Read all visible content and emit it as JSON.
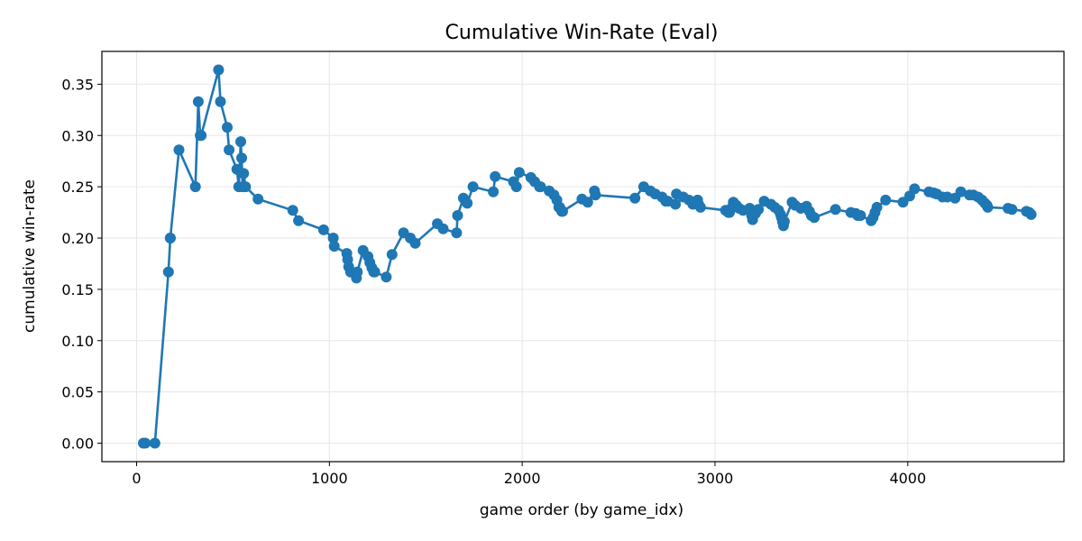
{
  "chart_data": {
    "type": "line",
    "title": "Cumulative Win-Rate (Eval)",
    "xlabel": "game order (by game_idx)",
    "ylabel": "cumulative win-rate",
    "xlim": [
      -180,
      4810
    ],
    "ylim": [
      -0.018,
      0.382
    ],
    "xticks": [
      0,
      1000,
      2000,
      3000,
      4000
    ],
    "xtick_labels": [
      "0",
      "1000",
      "2000",
      "3000",
      "4000"
    ],
    "yticks": [
      0.0,
      0.05,
      0.1,
      0.15,
      0.2,
      0.25,
      0.3,
      0.35
    ],
    "ytick_labels": [
      "0.00",
      "0.05",
      "0.10",
      "0.15",
      "0.20",
      "0.25",
      "0.30",
      "0.35"
    ],
    "grid": true,
    "color": "#1f77b4",
    "markers": true,
    "series": [
      {
        "x": [
          35,
          45,
          95,
          165,
          175,
          175,
          220,
          305,
          320,
          330,
          335,
          425,
          435,
          470,
          480,
          520,
          530,
          540,
          545,
          550,
          555,
          565,
          630,
          810,
          840,
          970,
          1020,
          1025,
          1090,
          1095,
          1100,
          1110,
          1140,
          1145,
          1175,
          1200,
          1210,
          1220,
          1230,
          1235,
          1295,
          1325,
          1385,
          1420,
          1445,
          1560,
          1590,
          1660,
          1665,
          1695,
          1715,
          1745,
          1850,
          1860,
          1955,
          1970,
          1985,
          2045,
          2065,
          2090,
          2095,
          2140,
          2165,
          2180,
          2190,
          2195,
          2205,
          2210,
          2310,
          2340,
          2375,
          2380,
          2585,
          2630,
          2665,
          2690,
          2725,
          2745,
          2755,
          2795,
          2800,
          2835,
          2865,
          2885,
          2910,
          2915,
          2925,
          3055,
          3070,
          3075,
          3085,
          3095,
          3110,
          3125,
          3145,
          3180,
          3190,
          3195,
          3210,
          3225,
          3255,
          3290,
          3310,
          3330,
          3340,
          3345,
          3350,
          3355,
          3360,
          3400,
          3415,
          3445,
          3475,
          3490,
          3500,
          3515,
          3625,
          3705,
          3730,
          3740,
          3755,
          3810,
          3820,
          3830,
          3840,
          3885,
          3975,
          4010,
          4035,
          4110,
          4135,
          4150,
          4180,
          4205,
          4245,
          4275,
          4320,
          4340,
          4365,
          4385,
          4400,
          4410,
          4415,
          4520,
          4540,
          4615,
          4630,
          4640
        ],
        "y": [
          0.0,
          0.0,
          0.0,
          0.167,
          0.2,
          0.2,
          0.286,
          0.25,
          0.333,
          0.3,
          0.3,
          0.364,
          0.333,
          0.308,
          0.286,
          0.267,
          0.25,
          0.294,
          0.278,
          0.25,
          0.263,
          0.25,
          0.238,
          0.227,
          0.217,
          0.208,
          0.2,
          0.192,
          0.185,
          0.179,
          0.172,
          0.167,
          0.161,
          0.167,
          0.188,
          0.182,
          0.176,
          0.171,
          0.167,
          0.167,
          0.162,
          0.184,
          0.205,
          0.2,
          0.195,
          0.214,
          0.209,
          0.205,
          0.222,
          0.239,
          0.234,
          0.25,
          0.245,
          0.26,
          0.255,
          0.25,
          0.264,
          0.259,
          0.255,
          0.25,
          0.25,
          0.246,
          0.242,
          0.237,
          0.23,
          0.23,
          0.226,
          0.226,
          0.238,
          0.235,
          0.246,
          0.242,
          0.239,
          0.25,
          0.246,
          0.243,
          0.24,
          0.236,
          0.236,
          0.233,
          0.243,
          0.24,
          0.237,
          0.233,
          0.237,
          0.233,
          0.23,
          0.227,
          0.225,
          0.225,
          0.229,
          0.235,
          0.232,
          0.229,
          0.227,
          0.229,
          0.222,
          0.218,
          0.224,
          0.228,
          0.236,
          0.233,
          0.23,
          0.227,
          0.223,
          0.22,
          0.216,
          0.212,
          0.216,
          0.235,
          0.232,
          0.229,
          0.231,
          0.226,
          0.222,
          0.22,
          0.228,
          0.225,
          0.224,
          0.222,
          0.222,
          0.217,
          0.22,
          0.225,
          0.23,
          0.237,
          0.235,
          0.241,
          0.248,
          0.245,
          0.244,
          0.243,
          0.24,
          0.24,
          0.239,
          0.245,
          0.242,
          0.242,
          0.24,
          0.237,
          0.234,
          0.232,
          0.23,
          0.229,
          0.228,
          0.226,
          0.225,
          0.223
        ]
      }
    ]
  }
}
